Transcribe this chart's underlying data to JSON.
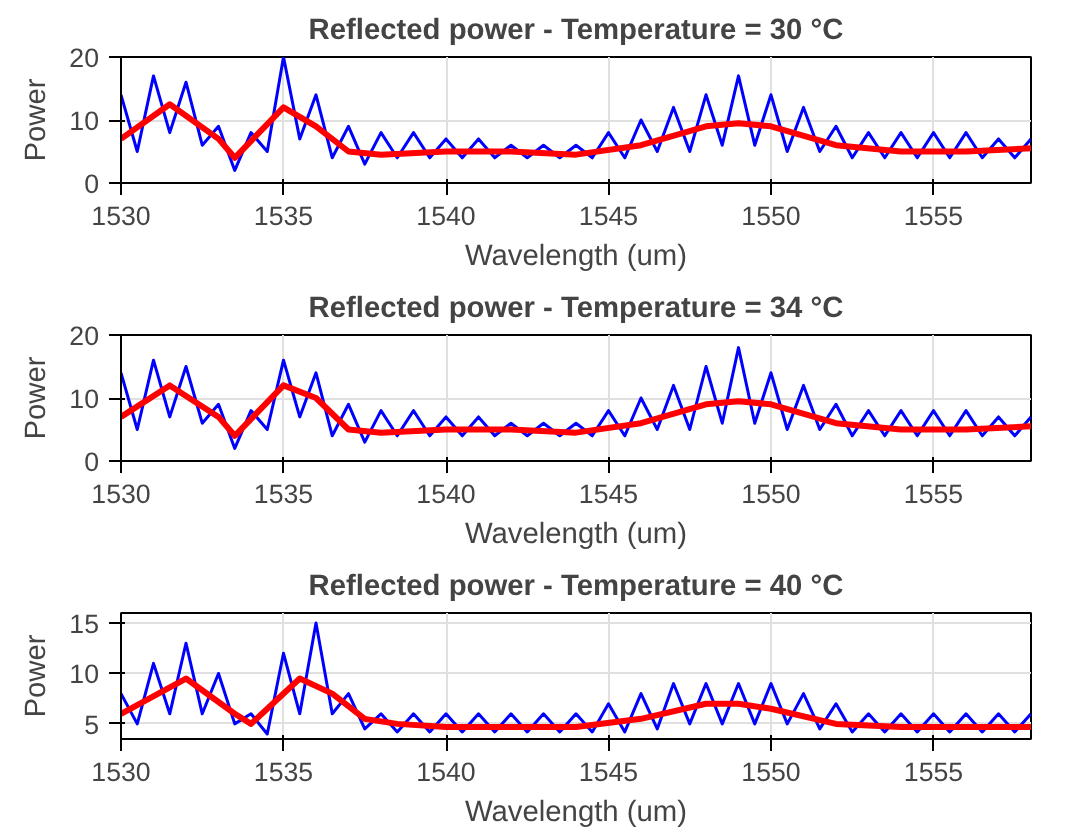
{
  "chart_data": [
    {
      "type": "line",
      "title": "Reflected power - Temperature = 30 °C",
      "xlabel": "Wavelength (um)",
      "ylabel": "Power",
      "xlim": [
        1530,
        1558
      ],
      "xticks": [
        1530,
        1535,
        1540,
        1545,
        1550,
        1555
      ],
      "ylim": [
        0,
        20
      ],
      "yticks": [
        0,
        10,
        20
      ],
      "grid": true,
      "x": [
        1530,
        1531.5,
        1533,
        1533.5,
        1535,
        1536,
        1537,
        1538,
        1540,
        1542,
        1544,
        1546,
        1548,
        1549,
        1550,
        1552,
        1554,
        1556,
        1558
      ],
      "series": [
        {
          "color": "#0000ff",
          "x": [
            1530,
            1530.5,
            1531,
            1531.5,
            1532,
            1532.5,
            1533,
            1533.5,
            1534,
            1534.5,
            1535,
            1535.5,
            1536,
            1536.5,
            1537,
            1537.5,
            1538,
            1538.5,
            1539,
            1539.5,
            1540,
            1540.5,
            1541,
            1541.5,
            1542,
            1542.5,
            1543,
            1543.5,
            1544,
            1544.5,
            1545,
            1545.5,
            1546,
            1546.5,
            1547,
            1547.5,
            1548,
            1548.5,
            1549,
            1549.5,
            1550,
            1550.5,
            1551,
            1551.5,
            1552,
            1552.5,
            1553,
            1553.5,
            1554,
            1554.5,
            1555,
            1555.5,
            1556,
            1556.5,
            1557,
            1557.5,
            1558
          ],
          "values": [
            14,
            5,
            17,
            8,
            16,
            6,
            9,
            2,
            8,
            5,
            20,
            7,
            14,
            4,
            9,
            3,
            8,
            4,
            8,
            4,
            7,
            4,
            7,
            4,
            6,
            4,
            6,
            4,
            6,
            4,
            8,
            4,
            10,
            5,
            12,
            5,
            14,
            6,
            17,
            6,
            14,
            5,
            12,
            5,
            9,
            4,
            8,
            4,
            8,
            4,
            8,
            4,
            8,
            4,
            7,
            4,
            7
          ]
        },
        {
          "color": "#ff0000",
          "values": [
            7,
            12.5,
            7,
            4,
            12,
            9,
            5,
            4.5,
            5,
            5,
            4.5,
            6,
            9,
            9.5,
            9,
            6,
            5,
            5,
            5.5
          ]
        }
      ]
    },
    {
      "type": "line",
      "title": "Reflected power - Temperature = 34 °C",
      "xlabel": "Wavelength (um)",
      "ylabel": "Power",
      "xlim": [
        1530,
        1558
      ],
      "xticks": [
        1530,
        1535,
        1540,
        1545,
        1550,
        1555
      ],
      "ylim": [
        0,
        20
      ],
      "yticks": [
        0,
        10,
        20
      ],
      "grid": true,
      "x": [
        1530,
        1531.5,
        1533,
        1533.5,
        1535,
        1536,
        1537,
        1538,
        1540,
        1542,
        1544,
        1546,
        1548,
        1549,
        1550,
        1552,
        1554,
        1556,
        1558
      ],
      "series": [
        {
          "color": "#0000ff",
          "x": [
            1530,
            1530.5,
            1531,
            1531.5,
            1532,
            1532.5,
            1533,
            1533.5,
            1534,
            1534.5,
            1535,
            1535.5,
            1536,
            1536.5,
            1537,
            1537.5,
            1538,
            1538.5,
            1539,
            1539.5,
            1540,
            1540.5,
            1541,
            1541.5,
            1542,
            1542.5,
            1543,
            1543.5,
            1544,
            1544.5,
            1545,
            1545.5,
            1546,
            1546.5,
            1547,
            1547.5,
            1548,
            1548.5,
            1549,
            1549.5,
            1550,
            1550.5,
            1551,
            1551.5,
            1552,
            1552.5,
            1553,
            1553.5,
            1554,
            1554.5,
            1555,
            1555.5,
            1556,
            1556.5,
            1557,
            1557.5,
            1558
          ],
          "values": [
            14,
            5,
            16,
            7,
            15,
            6,
            9,
            2,
            8,
            5,
            16,
            7,
            14,
            4,
            9,
            3,
            8,
            4,
            8,
            4,
            7,
            4,
            7,
            4,
            6,
            4,
            6,
            4,
            6,
            4,
            8,
            4,
            10,
            5,
            12,
            5,
            15,
            6,
            18,
            6,
            14,
            5,
            12,
            5,
            9,
            4,
            8,
            4,
            8,
            4,
            8,
            4,
            8,
            4,
            7,
            4,
            7
          ]
        },
        {
          "color": "#ff0000",
          "values": [
            7,
            12,
            7,
            4,
            12,
            10,
            5,
            4.5,
            5,
            5,
            4.5,
            6,
            9,
            9.5,
            9,
            6,
            5,
            5,
            5.5
          ]
        }
      ]
    },
    {
      "type": "line",
      "title": "Reflected power - Temperature = 40 °C",
      "xlabel": "Wavelength (um)",
      "ylabel": "Power",
      "xlim": [
        1530,
        1558
      ],
      "xticks": [
        1530,
        1535,
        1540,
        1545,
        1550,
        1555
      ],
      "ylim": [
        3.5,
        16
      ],
      "yticks": [
        5,
        10,
        15
      ],
      "grid": true,
      "x": [
        1530,
        1532,
        1533.5,
        1534,
        1535.5,
        1536.5,
        1537.5,
        1538.5,
        1540,
        1542,
        1544,
        1546,
        1548,
        1549,
        1550,
        1552,
        1554,
        1556,
        1558
      ],
      "series": [
        {
          "color": "#0000ff",
          "x": [
            1530,
            1530.5,
            1531,
            1531.5,
            1532,
            1532.5,
            1533,
            1533.5,
            1534,
            1534.5,
            1535,
            1535.5,
            1536,
            1536.5,
            1537,
            1537.5,
            1538,
            1538.5,
            1539,
            1539.5,
            1540,
            1540.5,
            1541,
            1541.5,
            1542,
            1542.5,
            1543,
            1543.5,
            1544,
            1544.5,
            1545,
            1545.5,
            1546,
            1546.5,
            1547,
            1547.5,
            1548,
            1548.5,
            1549,
            1549.5,
            1550,
            1550.5,
            1551,
            1551.5,
            1552,
            1552.5,
            1553,
            1553.5,
            1554,
            1554.5,
            1555,
            1555.5,
            1556,
            1556.5,
            1557,
            1557.5,
            1558
          ],
          "values": [
            8,
            5,
            11,
            6,
            13,
            6,
            10,
            5,
            6,
            4,
            12,
            6,
            15,
            6,
            8,
            4.5,
            6,
            4.2,
            6,
            4.2,
            6,
            4.2,
            6,
            4.2,
            6,
            4.2,
            6,
            4.2,
            6,
            4.2,
            7,
            4.2,
            8,
            4.5,
            9,
            5,
            9,
            5,
            9,
            5,
            9,
            5,
            8,
            4.5,
            7,
            4.2,
            6,
            4.2,
            6,
            4.2,
            6,
            4.2,
            6,
            4.2,
            6,
            4.2,
            6
          ]
        },
        {
          "color": "#ff0000",
          "values": [
            6,
            9.5,
            6,
            5,
            9.5,
            8,
            5.5,
            5,
            4.7,
            4.7,
            4.7,
            5.5,
            7,
            7,
            6.5,
            5,
            4.7,
            4.7,
            4.7
          ]
        }
      ]
    }
  ]
}
